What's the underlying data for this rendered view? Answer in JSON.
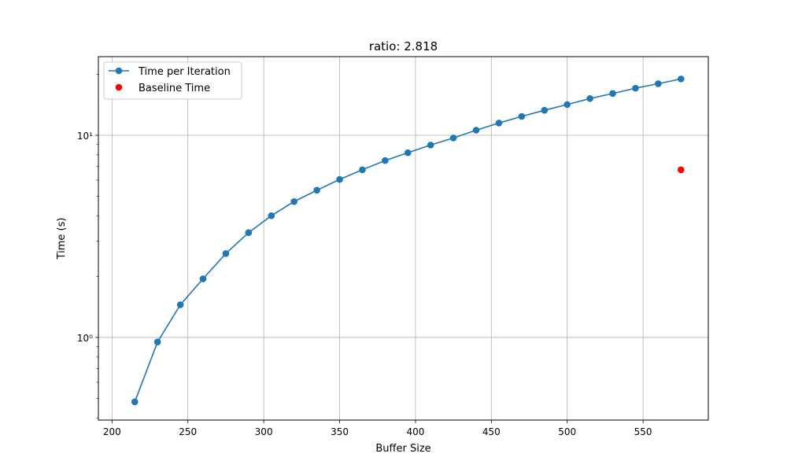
{
  "chart_data": {
    "type": "line",
    "title": "ratio: 2.818",
    "xlabel": "Buffer Size",
    "ylabel": "Time (s)",
    "yscale": "log",
    "xlim": [
      191,
      593
    ],
    "ylim": [
      0.39,
      24.5
    ],
    "grid": true,
    "legend_position": "top-left",
    "x_ticks": [
      200,
      250,
      300,
      350,
      400,
      450,
      500,
      550
    ],
    "y_ticks": [
      {
        "value": 1,
        "label": "10⁰"
      },
      {
        "value": 10,
        "label": "10¹"
      }
    ],
    "series": [
      {
        "name": "Time per Iteration",
        "color": "#1f77b4",
        "style": "line-marker",
        "x": [
          215,
          230,
          245,
          260,
          275,
          290,
          305,
          320,
          335,
          350,
          365,
          380,
          395,
          410,
          425,
          440,
          455,
          470,
          485,
          500,
          515,
          530,
          545,
          560,
          575
        ],
        "y": [
          0.48,
          0.95,
          1.45,
          1.95,
          2.6,
          3.3,
          4.0,
          4.7,
          5.35,
          6.05,
          6.75,
          7.5,
          8.2,
          8.95,
          9.7,
          10.6,
          11.5,
          12.4,
          13.3,
          14.2,
          15.2,
          16.1,
          17.1,
          18.0,
          19.0
        ]
      },
      {
        "name": "Baseline Time",
        "color": "#ff0000",
        "style": "scatter",
        "x": [
          575
        ],
        "y": [
          6.75
        ]
      }
    ]
  }
}
